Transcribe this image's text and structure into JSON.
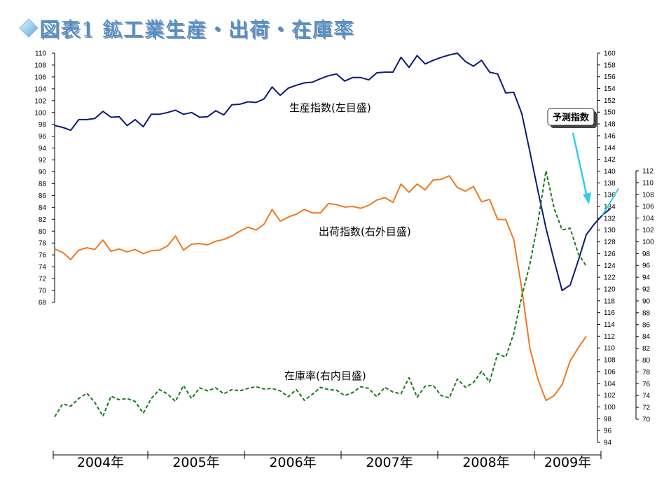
{
  "title": "図表1 鉱工業生産・出荷・在庫率",
  "chart_data": {
    "type": "line",
    "title": "図表1 鉱工業生産・出荷・在庫率",
    "x_labels": [
      "2004年",
      "2005年",
      "2006年",
      "2007年",
      "2008年",
      "2009年"
    ],
    "axes": {
      "left": {
        "min": 68,
        "max": 110,
        "step": 2
      },
      "right_outer": {
        "min": 94,
        "max": 160,
        "step": 2
      },
      "right_inner": {
        "min": 70,
        "max": 112,
        "step": 2
      }
    },
    "series": [
      {
        "name": "生産指数(左目盛)",
        "color": "#0a1a78",
        "axis": "left",
        "dash": false,
        "values": [
          97.8,
          97.5,
          97.0,
          98.8,
          98.8,
          99.0,
          100.2,
          99.2,
          99.3,
          97.8,
          98.8,
          97.6,
          99.7,
          99.7,
          100.0,
          100.4,
          99.7,
          100.0,
          99.2,
          99.3,
          100.3,
          99.6,
          101.3,
          101.4,
          101.8,
          101.7,
          102.3,
          104.3,
          102.9,
          104.1,
          104.6,
          105.0,
          105.1,
          105.7,
          106.2,
          106.5,
          105.3,
          105.9,
          105.9,
          105.5,
          106.7,
          106.8,
          106.8,
          109.3,
          107.6,
          109.6,
          108.2,
          108.8,
          109.3,
          109.7,
          110.0,
          108.6,
          107.8,
          108.8,
          106.8,
          106.5,
          103.3,
          103.4,
          99.8,
          93.4,
          86.8,
          80.5,
          75.1,
          70.0,
          70.9,
          75.0,
          79.4,
          81.2,
          82.7,
          83.8
        ]
      },
      {
        "name": "予測指数",
        "color": "#33ccee",
        "axis": "left",
        "dash": false,
        "x_start": 68,
        "values": [
          82.7,
          84.9,
          87.2
        ]
      },
      {
        "name": "出荷指数(右外目盛)",
        "color": "#f07820",
        "axis": "right_outer",
        "dash": false,
        "values": [
          126.8,
          126.2,
          125.0,
          126.6,
          127.0,
          126.7,
          128.3,
          126.4,
          126.8,
          126.3,
          126.7,
          126.0,
          126.5,
          126.6,
          127.3,
          129.0,
          126.6,
          127.6,
          127.7,
          127.5,
          128.1,
          128.4,
          129.0,
          129.8,
          130.5,
          130.0,
          131.0,
          133.5,
          131.5,
          132.2,
          132.7,
          133.5,
          132.9,
          132.9,
          134.5,
          134.3,
          133.9,
          134.0,
          133.7,
          134.2,
          135.1,
          135.5,
          134.7,
          137.8,
          136.4,
          137.8,
          136.8,
          138.5,
          138.6,
          139.2,
          137.2,
          136.6,
          137.4,
          134.8,
          135.2,
          131.8,
          131.8,
          128.4,
          120.0,
          110.0,
          104.7,
          101.1,
          101.9,
          103.8,
          107.8,
          110.0,
          112.0
        ]
      },
      {
        "name": "在庫率(右内目盛)",
        "color": "#1a7a1a",
        "axis": "right_inner",
        "dash": true,
        "values": [
          70.4,
          72.6,
          72.2,
          73.5,
          74.4,
          72.8,
          70.5,
          73.9,
          73.3,
          73.5,
          73.0,
          71.0,
          73.5,
          75.0,
          74.3,
          73.0,
          75.7,
          73.5,
          75.3,
          74.8,
          75.3,
          74.3,
          75.0,
          74.8,
          75.2,
          75.5,
          75.1,
          75.2,
          74.8,
          73.8,
          75.0,
          73.2,
          74.2,
          75.4,
          75.0,
          74.9,
          74.0,
          74.5,
          75.5,
          75.2,
          73.8,
          75.4,
          74.6,
          74.3,
          77.0,
          73.7,
          75.6,
          75.7,
          74.0,
          73.6,
          76.8,
          75.4,
          76.2,
          78.1,
          76.3,
          81.1,
          80.5,
          84.5,
          90.8,
          96.2,
          103.3,
          112.0,
          105.7,
          102.0,
          102.3,
          98.0,
          95.9
        ]
      }
    ],
    "annotations": [
      {
        "text": "生産指数(左目盛)"
      },
      {
        "text": "出荷指数(右外目盛)"
      },
      {
        "text": "在庫率(右内目盛)"
      },
      {
        "text": "予測指数"
      }
    ],
    "legend": "none",
    "grid": false
  }
}
